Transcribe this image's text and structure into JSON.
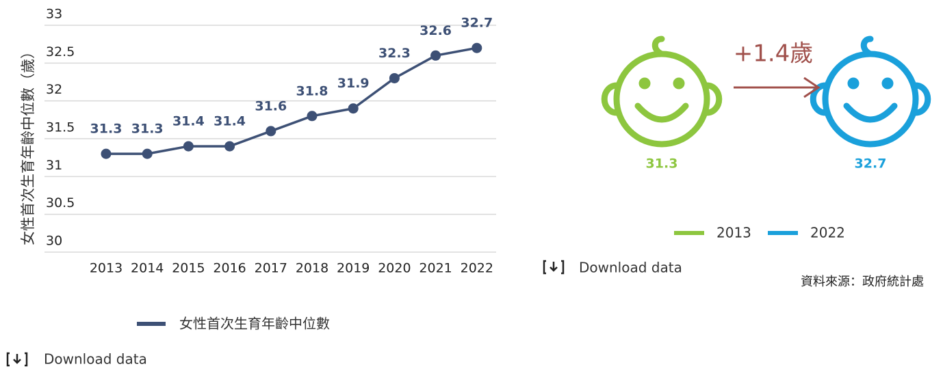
{
  "chart_data": {
    "type": "line",
    "y_label": "女性首次生育年齡中位數（歲）",
    "categories": [
      "2013",
      "2014",
      "2015",
      "2016",
      "2017",
      "2018",
      "2019",
      "2020",
      "2021",
      "2022"
    ],
    "series": [
      {
        "name": "女性首次生育年齡中位數",
        "color": "#3d5075",
        "values": [
          31.3,
          31.3,
          31.4,
          31.4,
          31.6,
          31.8,
          31.9,
          32.3,
          32.6,
          32.7
        ]
      }
    ],
    "ylim": [
      30,
      33
    ],
    "yticks": [
      30,
      30.5,
      31,
      31.5,
      32,
      32.5,
      33
    ],
    "grid": true
  },
  "infographic": {
    "change": "+1.4歲",
    "from_value": 31.3,
    "to_value": 32.7,
    "legend": [
      {
        "name": "2013",
        "color": "#8dc63f"
      },
      {
        "name": "2022",
        "color": "#1aa0db"
      }
    ],
    "source": "資料來源：政府統計處",
    "arrow_color": "#a0504b"
  },
  "downloads": [
    "Download data",
    "Download data"
  ]
}
